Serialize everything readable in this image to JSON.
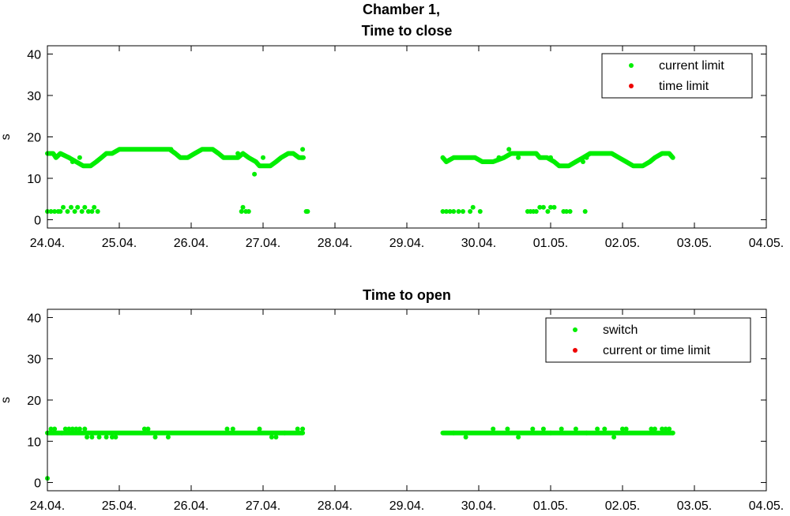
{
  "figure_title": "Chamber 1,",
  "chart_data": [
    {
      "type": "scatter",
      "title": "Time to close",
      "xlabel": "",
      "ylabel": "s",
      "xlim_days": [
        0,
        10
      ],
      "ylim": [
        -2,
        42
      ],
      "yticks": [
        0,
        10,
        20,
        30,
        40
      ],
      "xtick_labels": [
        "24.04.",
        "25.04.",
        "26.04.",
        "27.04.",
        "28.04.",
        "29.04.",
        "30.04.",
        "01.05.",
        "02.05.",
        "03.05.",
        "04.05."
      ],
      "legend_position": "top-right",
      "series": [
        {
          "name": "current limit",
          "color": "#00ee00",
          "segments": [
            [
              [
                0.0,
                16
              ],
              [
                0.08,
                16
              ],
              [
                0.12,
                15
              ],
              [
                0.18,
                16
              ],
              [
                0.3,
                15
              ],
              [
                0.4,
                14
              ],
              [
                0.5,
                13
              ],
              [
                0.6,
                13
              ],
              [
                0.68,
                14
              ],
              [
                0.75,
                15
              ],
              [
                0.82,
                16
              ],
              [
                0.9,
                16
              ],
              [
                1.0,
                17
              ],
              [
                1.2,
                17
              ],
              [
                1.4,
                17
              ],
              [
                1.6,
                17
              ],
              [
                1.7,
                17
              ],
              [
                1.78,
                16
              ],
              [
                1.85,
                15
              ],
              [
                1.95,
                15
              ],
              [
                2.05,
                16
              ],
              [
                2.15,
                17
              ],
              [
                2.3,
                17
              ],
              [
                2.38,
                16
              ],
              [
                2.45,
                15
              ],
              [
                2.55,
                15
              ],
              [
                2.65,
                15
              ],
              [
                2.72,
                16
              ],
              [
                2.8,
                15
              ],
              [
                2.9,
                14
              ],
              [
                2.95,
                13
              ],
              [
                3.1,
                13
              ],
              [
                3.18,
                14
              ],
              [
                3.25,
                15
              ],
              [
                3.35,
                16
              ],
              [
                3.42,
                16
              ],
              [
                3.5,
                15
              ],
              [
                3.56,
                15
              ]
            ],
            [
              [
                5.5,
                15
              ],
              [
                5.55,
                14
              ],
              [
                5.65,
                15
              ],
              [
                5.8,
                15
              ],
              [
                5.95,
                15
              ],
              [
                6.05,
                14
              ],
              [
                6.2,
                14
              ],
              [
                6.35,
                15
              ],
              [
                6.45,
                16
              ],
              [
                6.6,
                16
              ],
              [
                6.7,
                16
              ],
              [
                6.8,
                16
              ],
              [
                6.85,
                15
              ],
              [
                6.95,
                15
              ],
              [
                7.05,
                14
              ],
              [
                7.12,
                13
              ],
              [
                7.25,
                13
              ],
              [
                7.35,
                14
              ],
              [
                7.45,
                15
              ],
              [
                7.55,
                16
              ],
              [
                7.7,
                16
              ],
              [
                7.85,
                16
              ],
              [
                7.95,
                15
              ],
              [
                8.05,
                14
              ],
              [
                8.15,
                13
              ],
              [
                8.28,
                13
              ],
              [
                8.38,
                14
              ],
              [
                8.45,
                15
              ],
              [
                8.55,
                16
              ],
              [
                8.65,
                16
              ],
              [
                8.7,
                15
              ]
            ]
          ],
          "points": [
            [
              0.0,
              2
            ],
            [
              0.05,
              2
            ],
            [
              0.1,
              2
            ],
            [
              0.15,
              2
            ],
            [
              0.18,
              2
            ],
            [
              0.22,
              3
            ],
            [
              0.28,
              2
            ],
            [
              0.33,
              3
            ],
            [
              0.38,
              2
            ],
            [
              0.42,
              3
            ],
            [
              0.48,
              2
            ],
            [
              0.52,
              3
            ],
            [
              0.57,
              2
            ],
            [
              0.62,
              2
            ],
            [
              0.65,
              3
            ],
            [
              0.7,
              2
            ],
            [
              0.3,
              15
            ],
            [
              0.35,
              14
            ],
            [
              0.45,
              15
            ],
            [
              1.72,
              17
            ],
            [
              2.65,
              16
            ],
            [
              2.7,
              2
            ],
            [
              2.72,
              3
            ],
            [
              2.76,
              2
            ],
            [
              2.8,
              2
            ],
            [
              2.88,
              11
            ],
            [
              3.0,
              15
            ],
            [
              3.55,
              17
            ],
            [
              3.6,
              2
            ],
            [
              3.62,
              2
            ],
            [
              5.5,
              2
            ],
            [
              5.55,
              2
            ],
            [
              5.6,
              2
            ],
            [
              5.65,
              2
            ],
            [
              5.72,
              2
            ],
            [
              5.78,
              2
            ],
            [
              5.88,
              2
            ],
            [
              5.92,
              3
            ],
            [
              6.02,
              2
            ],
            [
              6.28,
              15
            ],
            [
              6.42,
              17
            ],
            [
              6.5,
              16
            ],
            [
              6.55,
              15
            ],
            [
              7.0,
              15
            ],
            [
              7.45,
              14
            ],
            [
              7.5,
              15
            ],
            [
              6.68,
              2
            ],
            [
              6.72,
              2
            ],
            [
              6.76,
              2
            ],
            [
              6.8,
              2
            ],
            [
              6.85,
              3
            ],
            [
              6.9,
              3
            ],
            [
              6.96,
              2
            ],
            [
              7.0,
              3
            ],
            [
              7.05,
              3
            ],
            [
              7.18,
              2
            ],
            [
              7.22,
              2
            ],
            [
              7.27,
              2
            ],
            [
              7.48,
              2
            ]
          ]
        },
        {
          "name": "time limit",
          "color": "#ee0000",
          "points": []
        }
      ]
    },
    {
      "type": "scatter",
      "title": "Time to open",
      "xlabel": "",
      "ylabel": "s",
      "xlim_days": [
        0,
        10
      ],
      "ylim": [
        -2,
        42
      ],
      "yticks": [
        0,
        10,
        20,
        30,
        40
      ],
      "xtick_labels": [
        "24.04.",
        "25.04.",
        "26.04.",
        "27.04.",
        "28.04.",
        "29.04.",
        "30.04.",
        "01.05.",
        "02.05.",
        "03.05.",
        "04.05."
      ],
      "legend_position": "top-right",
      "series": [
        {
          "name": "switch",
          "color": "#00ee00",
          "segments": [
            [
              [
                0.0,
                12
              ],
              [
                3.55,
                12
              ]
            ],
            [
              [
                5.5,
                12
              ],
              [
                8.7,
                12
              ]
            ]
          ],
          "points": [
            [
              0.0,
              1
            ],
            [
              0.05,
              13
            ],
            [
              0.1,
              13
            ],
            [
              0.2,
              12
            ],
            [
              0.25,
              13
            ],
            [
              0.3,
              13
            ],
            [
              0.35,
              13
            ],
            [
              0.4,
              13
            ],
            [
              0.45,
              13
            ],
            [
              0.52,
              13
            ],
            [
              0.55,
              11
            ],
            [
              0.62,
              11
            ],
            [
              0.72,
              11
            ],
            [
              0.82,
              11
            ],
            [
              0.9,
              11
            ],
            [
              0.95,
              11
            ],
            [
              1.35,
              13
            ],
            [
              1.4,
              13
            ],
            [
              1.5,
              11
            ],
            [
              1.68,
              11
            ],
            [
              2.5,
              13
            ],
            [
              2.58,
              13
            ],
            [
              2.95,
              13
            ],
            [
              3.12,
              11
            ],
            [
              3.18,
              11
            ],
            [
              3.3,
              12
            ],
            [
              3.48,
              13
            ],
            [
              3.55,
              13
            ],
            [
              5.65,
              12
            ],
            [
              5.82,
              11
            ],
            [
              6.2,
              13
            ],
            [
              6.4,
              13
            ],
            [
              6.55,
              11
            ],
            [
              6.75,
              13
            ],
            [
              6.9,
              13
            ],
            [
              7.0,
              12
            ],
            [
              7.15,
              13
            ],
            [
              7.35,
              13
            ],
            [
              7.5,
              12
            ],
            [
              7.65,
              13
            ],
            [
              7.75,
              13
            ],
            [
              7.88,
              11
            ],
            [
              8.0,
              13
            ],
            [
              8.05,
              13
            ],
            [
              8.4,
              13
            ],
            [
              8.45,
              13
            ],
            [
              8.55,
              13
            ],
            [
              8.6,
              13
            ],
            [
              8.65,
              13
            ],
            [
              8.7,
              12
            ]
          ]
        },
        {
          "name": "current or time limit",
          "color": "#ee0000",
          "points": []
        }
      ]
    }
  ]
}
